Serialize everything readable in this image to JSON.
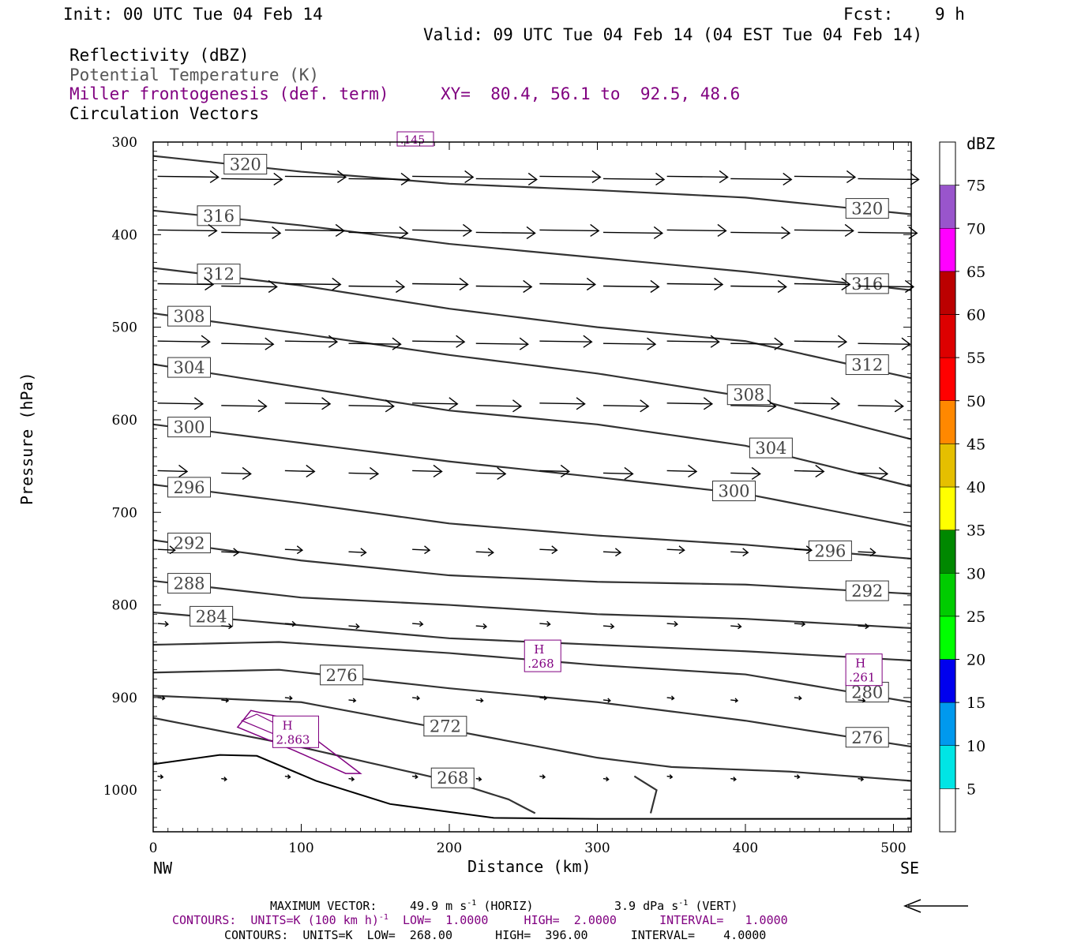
{
  "header": {
    "init": "Init: 00 UTC Tue 04 Feb 14",
    "fcst_label": "Fcst:",
    "fcst_value": "9 h",
    "valid": "Valid: 09 UTC Tue 04 Feb 14 (04 EST Tue 04 Feb 14)"
  },
  "fields": {
    "reflectivity": "Reflectivity (dBZ)",
    "theta": "Potential Temperature (K)",
    "frontogenesis": "Miller frontogenesis (def. term)",
    "xy": "XY=  80.4, 56.1 to  92.5, 48.6",
    "vectors": "Circulation Vectors"
  },
  "colors": {
    "purple": "#800080",
    "theta_contour": "#333333",
    "terrain": "#000000"
  },
  "footer": {
    "max_vector_label": "MAXIMUM VECTOR:",
    "max_vector_horiz": "49.9 m s",
    "horiz_unit": "(HORIZ)",
    "max_vector_vert": "3.9 dPa s",
    "vert_unit": "(VERT)",
    "contours1_prefix": "CONTOURS:  UNITS=K (100 km h)",
    "contours1_rest": "  LOW=  1.0000     HIGH=  2.0000      INTERVAL=   1.0000",
    "contours2": "CONTOURS:  UNITS=K  LOW=  268.00      HIGH=  396.00      INTERVAL=    4.0000",
    "sup": "-1"
  },
  "chart_data": {
    "type": "cross-section",
    "xlabel": "Distance (km)",
    "ylabel": "Pressure (hPa)",
    "xlim": [
      0,
      512
    ],
    "ylim": [
      1045,
      300
    ],
    "x_ticks": [
      0,
      100,
      200,
      300,
      400,
      500
    ],
    "y_ticks": [
      300,
      400,
      500,
      600,
      700,
      800,
      900,
      1000
    ],
    "x_end_labels": [
      "NW",
      "SE"
    ],
    "colorbar": {
      "unit": "dBZ",
      "levels": [
        5,
        10,
        15,
        20,
        25,
        30,
        35,
        40,
        45,
        50,
        55,
        60,
        65,
        70,
        75
      ],
      "colors": [
        "#ffffff",
        "#00e5e5",
        "#0099ee",
        "#0000ee",
        "#00ff00",
        "#00cc00",
        "#008800",
        "#ffff00",
        "#e5bf00",
        "#ff8800",
        "#ff0000",
        "#dd0000",
        "#bb0000",
        "#ff00ff",
        "#9955cc",
        "#ffffff"
      ]
    },
    "theta_contours": [
      {
        "label": "320",
        "points": [
          [
            0,
            315
          ],
          [
            100,
            332
          ],
          [
            200,
            345
          ],
          [
            300,
            352
          ],
          [
            400,
            360
          ],
          [
            512,
            378
          ]
        ]
      },
      {
        "label": "316",
        "points": [
          [
            0,
            374
          ],
          [
            100,
            390
          ],
          [
            200,
            410
          ],
          [
            300,
            425
          ],
          [
            400,
            440
          ],
          [
            512,
            460
          ]
        ]
      },
      {
        "label": "312",
        "points": [
          [
            0,
            436
          ],
          [
            100,
            455
          ],
          [
            200,
            480
          ],
          [
            300,
            500
          ],
          [
            400,
            515
          ],
          [
            512,
            555
          ]
        ]
      },
      {
        "label": "308",
        "points": [
          [
            0,
            485
          ],
          [
            100,
            507
          ],
          [
            200,
            530
          ],
          [
            300,
            550
          ],
          [
            400,
            575
          ],
          [
            512,
            621
          ]
        ]
      },
      {
        "label": "304",
        "points": [
          [
            0,
            540
          ],
          [
            100,
            565
          ],
          [
            200,
            590
          ],
          [
            300,
            605
          ],
          [
            400,
            628
          ],
          [
            512,
            672
          ]
        ]
      },
      {
        "label": "300",
        "points": [
          [
            0,
            605
          ],
          [
            100,
            625
          ],
          [
            200,
            645
          ],
          [
            300,
            662
          ],
          [
            400,
            680
          ],
          [
            512,
            715
          ]
        ]
      },
      {
        "label": "296",
        "points": [
          [
            0,
            670
          ],
          [
            100,
            690
          ],
          [
            200,
            712
          ],
          [
            300,
            725
          ],
          [
            400,
            735
          ],
          [
            512,
            750
          ]
        ]
      },
      {
        "label": "292",
        "points": [
          [
            0,
            730
          ],
          [
            100,
            752
          ],
          [
            200,
            768
          ],
          [
            300,
            775
          ],
          [
            400,
            778
          ],
          [
            512,
            788
          ]
        ]
      },
      {
        "label": "288",
        "points": [
          [
            0,
            774
          ],
          [
            100,
            792
          ],
          [
            200,
            800
          ],
          [
            300,
            810
          ],
          [
            400,
            815
          ],
          [
            512,
            825
          ]
        ]
      },
      {
        "label": "284",
        "points": [
          [
            0,
            808
          ],
          [
            100,
            822
          ],
          [
            200,
            836
          ],
          [
            300,
            843
          ],
          [
            400,
            850
          ],
          [
            512,
            860
          ]
        ]
      },
      {
        "label": "280",
        "points": [
          [
            0,
            843
          ],
          [
            85,
            840
          ],
          [
            200,
            852
          ],
          [
            300,
            865
          ],
          [
            400,
            875
          ],
          [
            512,
            905
          ]
        ]
      },
      {
        "label": "276",
        "points": [
          [
            0,
            873
          ],
          [
            85,
            870
          ],
          [
            200,
            890
          ],
          [
            300,
            905
          ],
          [
            400,
            925
          ],
          [
            512,
            953
          ]
        ]
      },
      {
        "label": "272",
        "points": [
          [
            0,
            898
          ],
          [
            100,
            905
          ],
          [
            200,
            935
          ],
          [
            300,
            965
          ],
          [
            350,
            975
          ],
          [
            430,
            980
          ],
          [
            512,
            990
          ]
        ]
      },
      {
        "label": "268",
        "points": [
          [
            0,
            922
          ],
          [
            90,
            950
          ],
          [
            200,
            990
          ],
          [
            240,
            1010
          ],
          [
            258,
            1025
          ]
        ]
      },
      {
        "label": "268",
        "points": [
          [
            325,
            985
          ],
          [
            340,
            1000
          ],
          [
            336,
            1025
          ]
        ]
      }
    ],
    "frontogenesis_maxima": [
      {
        "label": "H",
        "value": ".145",
        "km": 168,
        "hPa": 306
      },
      {
        "label": "H",
        "value": ".268",
        "km": 254,
        "hPa": 855
      },
      {
        "label": "H",
        "value": ".261",
        "km": 471,
        "hPa": 870
      },
      {
        "label": "H",
        "value": "2.863",
        "km": 84,
        "hPa": 937
      }
    ],
    "wind_vector_rows": [
      {
        "hPa": 337,
        "u": 35
      },
      {
        "hPa": 395,
        "u": 34
      },
      {
        "hPa": 453,
        "u": 32
      },
      {
        "hPa": 515,
        "u": 30
      },
      {
        "hPa": 582,
        "u": 26
      },
      {
        "hPa": 655,
        "u": 17
      },
      {
        "hPa": 740,
        "u": 10
      },
      {
        "hPa": 820,
        "u": 6
      },
      {
        "hPa": 900,
        "u": 4
      },
      {
        "hPa": 985,
        "u": 3
      }
    ]
  }
}
